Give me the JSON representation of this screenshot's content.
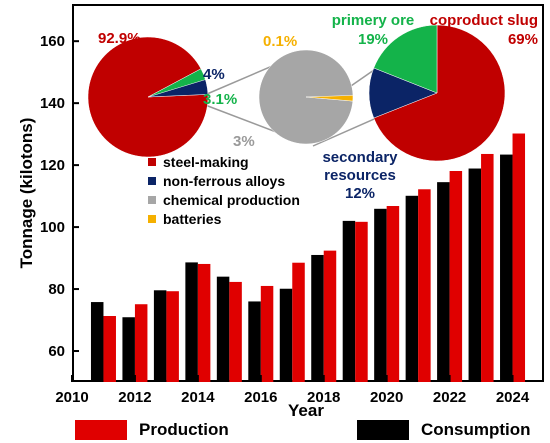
{
  "chart_data": {
    "type": "bar",
    "xlabel": "Year",
    "ylabel": "Tonnage (kilotons)",
    "ylim": [
      50,
      172
    ],
    "xlim": [
      2010,
      2025
    ],
    "x_ticks": [
      "2010",
      "2012",
      "2014",
      "2016",
      "2018",
      "2020",
      "2022",
      "2024"
    ],
    "y_ticks": [
      "60",
      "80",
      "100",
      "120",
      "140",
      "160"
    ],
    "years": [
      2011,
      2012,
      2013,
      2014,
      2015,
      2016,
      2017,
      2018,
      2019,
      2020,
      2021,
      2022,
      2023,
      2024
    ],
    "series": [
      {
        "name": "Production",
        "color": "#e00000",
        "values": [
          71.3,
          75.1,
          79.3,
          88.1,
          82.3,
          81.0,
          88.5,
          92.4,
          101.7,
          106.8,
          112.2,
          118.1,
          123.6,
          130.2
        ]
      },
      {
        "name": "Consumption",
        "color": "#000000",
        "values": [
          75.8,
          70.9,
          79.6,
          88.6,
          84.0,
          76.0,
          80.1,
          91.0,
          102.0,
          105.9,
          110.1,
          114.5,
          118.9,
          123.4
        ]
      }
    ],
    "legend_placement": "bottom",
    "grid": false,
    "insets": {
      "usage_pie": {
        "slices": [
          {
            "name": "steel-making",
            "value": 92.9,
            "label": "92.9%",
            "color": "#c00000"
          },
          {
            "name": "non-ferrous alloys",
            "value": 4.0,
            "label": "4%",
            "color": "#0b2466"
          },
          {
            "name": "chemical production",
            "value": 3.0,
            "label": "3%",
            "color": "#a6a6a6"
          },
          {
            "name": "batteries",
            "value": 0.1,
            "label": "",
            "color": "#f5b000"
          }
        ],
        "extra_labels": {
          "green_slice": "3.1%"
        }
      },
      "chemical_pie": {
        "slices": [
          {
            "name": "chemical production",
            "value": 99.9,
            "label": "3%",
            "color": "#a6a6a6"
          },
          {
            "name": "batteries",
            "value": 0.1,
            "label": "0.1%",
            "color": "#f5b000"
          }
        ]
      },
      "source_pie": {
        "slices": [
          {
            "name": "coproduct slug",
            "value": 69,
            "label": "69%",
            "color": "#c00000"
          },
          {
            "name": "secondary resources",
            "value": 12,
            "label": "12%",
            "color": "#0b2466"
          },
          {
            "name": "primery ore",
            "value": 19,
            "label": "19%",
            "color": "#14b34a"
          }
        ]
      },
      "legend": [
        {
          "label": "steel-making",
          "color": "#c00000"
        },
        {
          "label": "non-ferrous alloys",
          "color": "#0b2466"
        },
        {
          "label": "chemical production",
          "color": "#a6a6a6"
        },
        {
          "label": "batteries",
          "color": "#f5b000"
        }
      ]
    }
  },
  "labels": {
    "usage_big": "92.9%",
    "usage_blue": "4%",
    "usage_green": "3.1%",
    "chem_gray": "3%",
    "chem_yellow": "0.1%",
    "src_primery_name": "primery ore",
    "src_primery_val": "19%",
    "src_coproduct_name": "coproduct slug",
    "src_coproduct_val": "69%",
    "src_secondary_name_1": "secondary",
    "src_secondary_name_2": "resources",
    "src_secondary_val": "12%"
  },
  "legend": {
    "production": "Production",
    "consumption": "Consumption",
    "production_color": "#e00000",
    "consumption_color": "#000000"
  }
}
